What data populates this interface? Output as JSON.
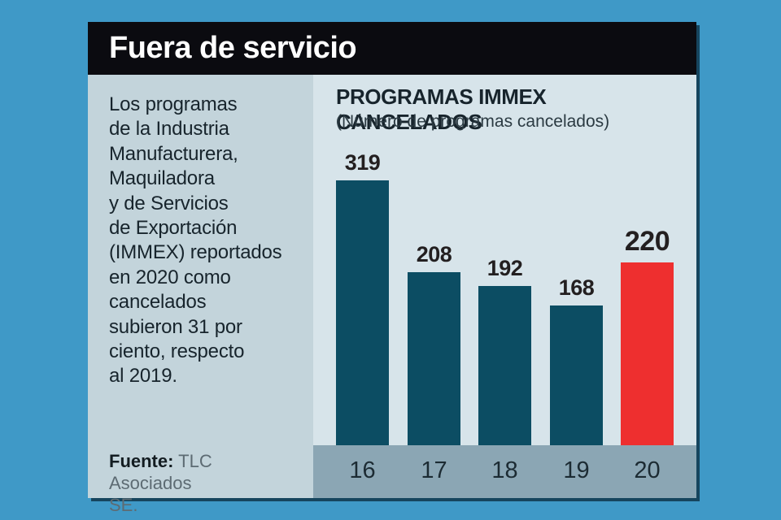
{
  "header": {
    "title": "Fuera de servicio"
  },
  "sidebar": {
    "description": "Los programas\nde la Industria\nManufacturera,\nMaquiladora\ny de Servicios\nde Exportación\n(IMMEX) reportados\nen 2020 como\ncancelados\nsubieron 31 por\nciento, respecto\nal 2019.",
    "source_label": "Fuente:",
    "source_value": "TLC Asociados\nSE."
  },
  "chart": {
    "title": "PROGRAMAS IMMEX CANCELADOS",
    "subtitle": "(Número de programas cancelados)"
  },
  "chart_data": {
    "type": "bar",
    "title": "PROGRAMAS IMMEX CANCELADOS",
    "subtitle": "(Número de programas cancelados)",
    "categories": [
      "16",
      "17",
      "18",
      "19",
      "20"
    ],
    "values": [
      319,
      208,
      192,
      168,
      220
    ],
    "highlight_index": 4,
    "bar_color": "#0c4d63",
    "highlight_color": "#ee2f2f",
    "background_color": "#d7e4ea",
    "axis_band_color": "#8ba6b4",
    "label_color": "#231f20",
    "xlabel": "",
    "ylabel": "",
    "ylim": [
      0,
      340
    ],
    "grid": false,
    "legend": false
  }
}
